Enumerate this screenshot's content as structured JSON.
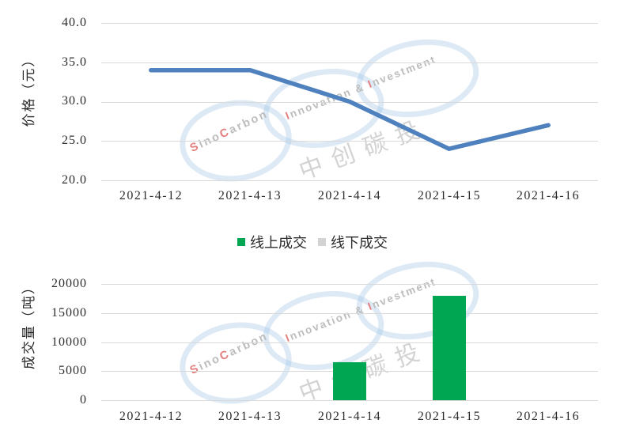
{
  "watermark": {
    "brand_parts": [
      {
        "t": "S",
        "red": true
      },
      {
        "t": "ino"
      },
      {
        "t": "C",
        "red": true
      },
      {
        "t": "arbon"
      }
    ],
    "tagline_parts": [
      {
        "t": "I",
        "red": true
      },
      {
        "t": "nnovation & "
      },
      {
        "t": "I",
        "red": true
      },
      {
        "t": "nvestment"
      }
    ],
    "cn_text": "中创碳投"
  },
  "legend": {
    "items": [
      {
        "label": "线上成交",
        "color": "#00A651"
      },
      {
        "label": "线下成交",
        "color": "#D3D3D3"
      }
    ]
  },
  "chart_data": [
    {
      "type": "line",
      "title": "",
      "categories": [
        "2021-4-12",
        "2021-4-13",
        "2021-4-14",
        "2021-4-15",
        "2021-4-16"
      ],
      "series": [
        {
          "name": "价格",
          "values": [
            34,
            34,
            30,
            24,
            27
          ],
          "color": "#4E81BD"
        }
      ],
      "xlabel": "",
      "ylabel": "价格（元）",
      "ylim": [
        20,
        40
      ],
      "yticks": [
        "40.0",
        "35.0",
        "30.0",
        "25.0",
        "20.0"
      ],
      "grid": true,
      "legend_position": "none",
      "gridline_color": "#d9d9d9"
    },
    {
      "type": "bar",
      "title": "",
      "categories": [
        "2021-4-12",
        "2021-4-13",
        "2021-4-14",
        "2021-4-15",
        "2021-4-16"
      ],
      "series": [
        {
          "name": "线上成交",
          "values": [
            0,
            0,
            6500,
            17900,
            0
          ],
          "color": "#00A651"
        },
        {
          "name": "线下成交",
          "values": [
            0,
            0,
            0,
            0,
            0
          ],
          "color": "#D3D3D3"
        }
      ],
      "xlabel": "",
      "ylabel": "成交量（吨）",
      "ylim": [
        0,
        20000
      ],
      "yticks": [
        "20000",
        "15000",
        "10000",
        "5000",
        "0"
      ],
      "grid": true,
      "legend_position": "top-center",
      "gridline_color": "#d9d9d9"
    }
  ]
}
